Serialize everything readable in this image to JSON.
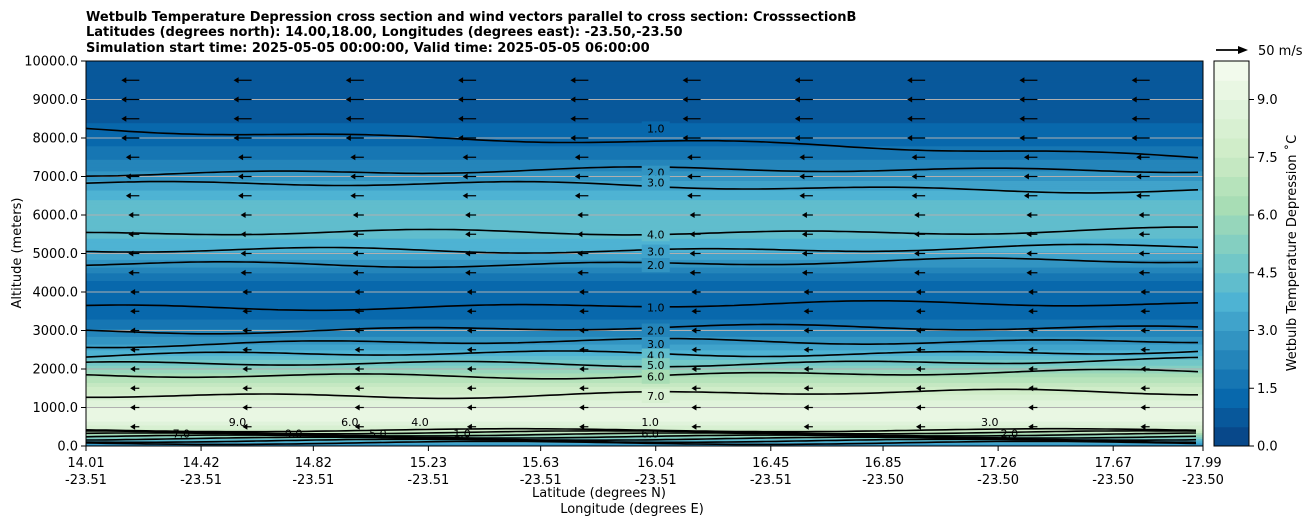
{
  "chart_data": {
    "type": "contour",
    "title_lines": [
      "Wetbulb Temperature Depression cross section and wind vectors parallel to cross section: CrosssectionB",
      "Latitudes (degrees north): 14.00,18.00, Longitudes (degrees east): -23.50,-23.50",
      "Simulation start time: 2025-05-05 00:00:00, Valid time: 2025-05-05 06:00:00"
    ],
    "ylabel": "Altitude (meters)",
    "xlabel_lat": "Latitude (degrees N)",
    "xlabel_lon": "Longitude (degrees E)",
    "ylim": [
      0,
      10000
    ],
    "yticks": [
      "0.0",
      "1000.0",
      "2000.0",
      "3000.0",
      "4000.0",
      "5000.0",
      "6000.0",
      "7000.0",
      "8000.0",
      "9000.0",
      "10000.0"
    ],
    "ytick_values": [
      0,
      1000,
      2000,
      3000,
      4000,
      5000,
      6000,
      7000,
      8000,
      9000,
      10000
    ],
    "xlim": [
      14.01,
      17.99
    ],
    "xticks_lat": [
      "14.01",
      "14.42",
      "14.82",
      "15.23",
      "15.63",
      "16.04",
      "16.45",
      "16.85",
      "17.26",
      "17.67",
      "17.99"
    ],
    "xticks_lon": [
      "-23.51",
      "-23.51",
      "-23.51",
      "-23.51",
      "-23.51",
      "-23.51",
      "-23.51",
      "-23.50",
      "-23.50",
      "-23.50",
      "-23.50"
    ],
    "xtick_values": [
      14.01,
      14.42,
      14.82,
      15.23,
      15.63,
      16.04,
      16.45,
      16.85,
      17.26,
      17.67,
      17.99
    ],
    "colorbar": {
      "label": "Wetbulb Temperature Depression $^\\circ$C",
      "label_text": "Wetbulb Temperature Depression ˚C",
      "range": [
        0,
        10
      ],
      "ticks": [
        "0.0",
        "1.5",
        "3.0",
        "4.5",
        "6.0",
        "7.5",
        "9.0"
      ],
      "tick_values": [
        0,
        1.5,
        3.0,
        4.5,
        6.0,
        7.5,
        9.0
      ],
      "colormap": "GnBu_r"
    },
    "wind_key": {
      "label": "50 m/s"
    },
    "depression_profile": {
      "altitude": [
        0,
        150,
        300,
        450,
        700,
        1000,
        1500,
        1800,
        2100,
        2400,
        2700,
        3200,
        3800,
        4300,
        4700,
        5100,
        5600,
        6000,
        6400,
        6800,
        7200,
        7800,
        8400,
        9000,
        9600,
        10000
      ],
      "value": [
        2.0,
        4.0,
        6.0,
        8.0,
        9.3,
        9.0,
        7.6,
        6.4,
        5.0,
        3.8,
        2.8,
        1.6,
        1.0,
        1.5,
        2.6,
        3.6,
        4.3,
        4.5,
        4.0,
        3.2,
        2.4,
        1.5,
        1.0,
        0.8,
        0.6,
        0.5
      ]
    },
    "contour_levels": [
      {
        "label": "1.0",
        "altitude": 8250
      },
      {
        "label": "2.0",
        "altitude": 7100
      },
      {
        "label": "3.0",
        "altitude": 6850
      },
      {
        "label": "4.0",
        "altitude": 5500
      },
      {
        "label": "3.0",
        "altitude": 5050
      },
      {
        "label": "2.0",
        "altitude": 4700
      },
      {
        "label": "1.0",
        "altitude": 3600
      },
      {
        "label": "2.0",
        "altitude": 3000
      },
      {
        "label": "3.0",
        "altitude": 2650
      },
      {
        "label": "4.0",
        "altitude": 2350
      },
      {
        "label": "5.0",
        "altitude": 2100
      },
      {
        "label": "6.0",
        "altitude": 1800
      },
      {
        "label": "7.0",
        "altitude": 1300
      }
    ],
    "near_surface_labels": [
      "7.0",
      "9.0",
      "9.0",
      "6.0",
      "5.0",
      "4.0",
      "1.0",
      "1.0",
      "6.0",
      "3.0",
      "2.0"
    ]
  }
}
